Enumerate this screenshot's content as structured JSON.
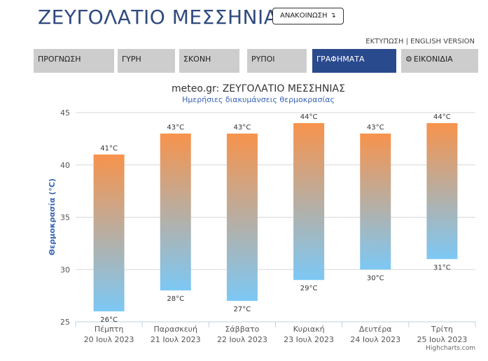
{
  "header": {
    "title": "ΖΕΥΓΟΛΑΤΙΟ ΜΕΣΣΗΝΙΑΣ",
    "announce_label": "ΑΝΑΚΟΙΝΩΣΗ",
    "announce_icon": "arrow-down-turn-icon",
    "links": {
      "print": "ΕΚΤΥΠΩΣΗ",
      "separator": "|",
      "english": "ENGLISH VERSION"
    }
  },
  "nav": {
    "tabs": [
      {
        "label": "ΠΡΟΓΝΩΣΗ",
        "active": false
      },
      {
        "label": "ΓΥΡΗ",
        "active": false
      },
      {
        "label": "ΣΚΟΝΗ",
        "active": false
      },
      {
        "label": "ΡΥΠΟΙ",
        "active": false
      },
      {
        "label": "ΓΡΑΦΗΜΑΤΑ",
        "active": true
      },
      {
        "label": "ΕΙΚΟΝΙΔΙΑ",
        "active": false,
        "icon": "gear-icon"
      }
    ],
    "colors": {
      "active_bg": "#2a4a8e",
      "inactive_bg": "#cdcdcd"
    }
  },
  "chart_data": {
    "type": "bar",
    "subtype": "columnrange",
    "title": "meteo.gr: ΖΕΥΓΟΛΑΤΙΟ ΜΕΣΣΗΝΙΑΣ",
    "subtitle": "Ημερήσιες διακυμάνσεις θερμοκρασίας",
    "ylabel": "Θερμοκρασία (°C)",
    "xlabel": "",
    "ylim": [
      25,
      45
    ],
    "yticks": [
      "25",
      "30",
      "35",
      "40",
      "45"
    ],
    "grid": true,
    "categories": [
      [
        "Πέμπτη",
        "20 Ιουλ 2023"
      ],
      [
        "Παρασκευή",
        "21 Ιουλ 2023"
      ],
      [
        "Σάββατο",
        "22 Ιουλ 2023"
      ],
      [
        "Κυριακή",
        "23 Ιουλ 2023"
      ],
      [
        "Δευτέρα",
        "24 Ιουλ 2023"
      ],
      [
        "Τρίτη",
        "25 Ιουλ 2023"
      ]
    ],
    "low": [
      26,
      28,
      27,
      29,
      30,
      31
    ],
    "high": [
      41,
      43,
      43,
      44,
      43,
      44
    ],
    "unit": "°C",
    "colors": {
      "top": "#f7934c",
      "bottom": "#7cc8f5"
    },
    "credits": "Highcharts.com"
  }
}
